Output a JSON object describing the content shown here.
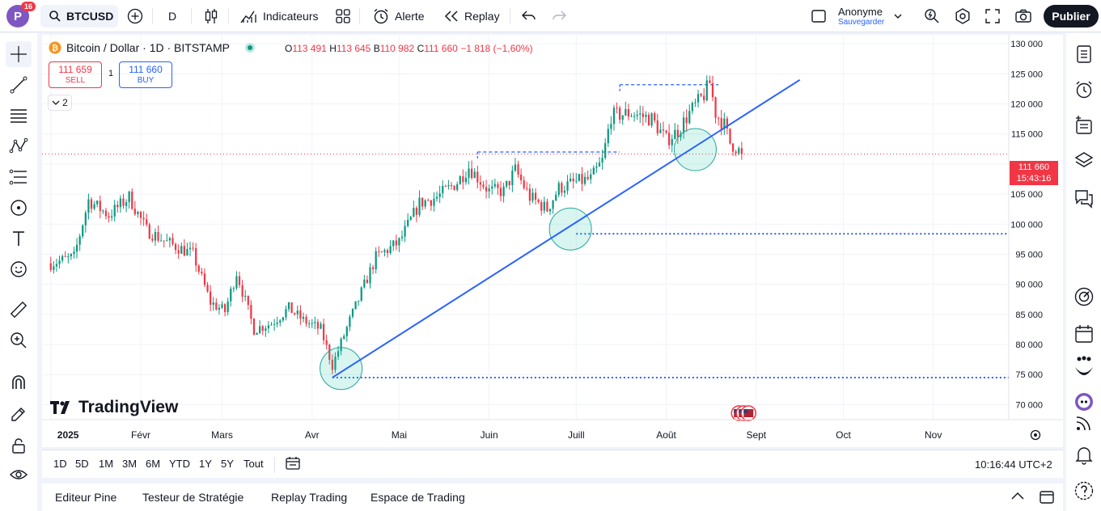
{
  "topbar": {
    "avatar_letter": "P",
    "notifications": "16",
    "symbol": "BTCUSD",
    "interval": "D",
    "indicators_label": "Indicateurs",
    "alert_label": "Alerte",
    "replay_label": "Replay",
    "account_name": "Anonyme",
    "account_sub": "Sauvegarder",
    "publish_label": "Publier"
  },
  "legend": {
    "title": "Bitcoin / Dollar · 1D · BITSTAMP",
    "o_key": "O",
    "o_val": "113 491",
    "h_key": "H",
    "h_val": "113 645",
    "b_key": "B",
    "b_val": "110 982",
    "c_key": "C",
    "c_val": "111 660",
    "change": "−1 818 (−1,60%)",
    "sell_price": "111 659",
    "sell_label": "SELL",
    "buy_price": "111 660",
    "buy_label": "BUY",
    "spread": "1",
    "collapsed_count": "2"
  },
  "branding": {
    "logo_text": "TradingView"
  },
  "price_tag": {
    "price": "111 660",
    "countdown": "15:43:16"
  },
  "colors": {
    "up": "#089981",
    "down": "#f23645",
    "trend": "#2962ff",
    "accent": "#2962ff"
  },
  "bottombar": {
    "ranges": [
      "1D",
      "5D",
      "1M",
      "3M",
      "6M",
      "YTD",
      "1Y",
      "5Y",
      "Tout"
    ],
    "clock": "10:16:44 UTC+2"
  },
  "panels": [
    "Editeur Pine",
    "Testeur de Stratégie",
    "Replay Trading",
    "Espace de Trading"
  ],
  "chart_data": {
    "type": "candlestick",
    "title": "Bitcoin / Dollar · 1D · BITSTAMP",
    "y_ticks": [
      70000,
      75000,
      80000,
      85000,
      90000,
      95000,
      100000,
      105000,
      110000,
      115000,
      120000,
      125000,
      130000
    ],
    "y_tick_labels": [
      "70 000",
      "75 000",
      "80 000",
      "85 000",
      "90 000",
      "95 000",
      "100 000",
      "105 000",
      "110 000",
      "115 000",
      "120 000",
      "125 000",
      "130 000"
    ],
    "ylim": [
      67500,
      131500
    ],
    "x_labels": [
      "2025",
      "Févr",
      "Mars",
      "Avr",
      "Mai",
      "Juin",
      "Juill",
      "Août",
      "Sept",
      "Oct",
      "Nov"
    ],
    "x_label_days": [
      0,
      31,
      59,
      90,
      120,
      151,
      181,
      212,
      243,
      273,
      304
    ],
    "xlim_days": [
      -3,
      330
    ],
    "last_price": 111660,
    "trendline": {
      "from_day": 97,
      "from_price": 74500,
      "to_day": 258,
      "to_price": 124000
    },
    "support_lines": [
      {
        "from_day": 97,
        "price": 74500
      },
      {
        "from_day": 181,
        "price": 98400
      }
    ],
    "resistance_segments": [
      {
        "from_day": 147,
        "to_day": 196,
        "price": 112000
      },
      {
        "from_day": 196,
        "to_day": 230,
        "price": 123200
      }
    ],
    "touch_circles": [
      {
        "day": 100,
        "price": 76000
      },
      {
        "day": 179,
        "price": 99200
      },
      {
        "day": 222,
        "price": 112400
      }
    ],
    "anchors": [
      [
        0,
        93500
      ],
      [
        8,
        94500
      ],
      [
        13,
        104000
      ],
      [
        20,
        101500
      ],
      [
        27,
        104500
      ],
      [
        33,
        99000
      ],
      [
        40,
        97000
      ],
      [
        49,
        95000
      ],
      [
        55,
        87000
      ],
      [
        60,
        85500
      ],
      [
        64,
        92000
      ],
      [
        70,
        82500
      ],
      [
        76,
        83500
      ],
      [
        82,
        86000
      ],
      [
        87,
        84000
      ],
      [
        93,
        82500
      ],
      [
        97,
        76500
      ],
      [
        103,
        84000
      ],
      [
        112,
        94500
      ],
      [
        120,
        97000
      ],
      [
        127,
        103500
      ],
      [
        133,
        104500
      ],
      [
        140,
        107000
      ],
      [
        144,
        109500
      ],
      [
        151,
        105500
      ],
      [
        156,
        105500
      ],
      [
        160,
        109000
      ],
      [
        165,
        104500
      ],
      [
        171,
        102500
      ],
      [
        175,
        106000
      ],
      [
        181,
        107000
      ],
      [
        186,
        107500
      ],
      [
        190,
        110500
      ],
      [
        193,
        118000
      ],
      [
        200,
        118500
      ],
      [
        207,
        117500
      ],
      [
        212,
        114000
      ],
      [
        216,
        115500
      ],
      [
        220,
        118500
      ],
      [
        225,
        121500
      ],
      [
        227,
        123500
      ],
      [
        229,
        118500
      ],
      [
        232,
        116500
      ],
      [
        234,
        113500
      ],
      [
        236,
        112800
      ],
      [
        238,
        111660
      ]
    ]
  }
}
